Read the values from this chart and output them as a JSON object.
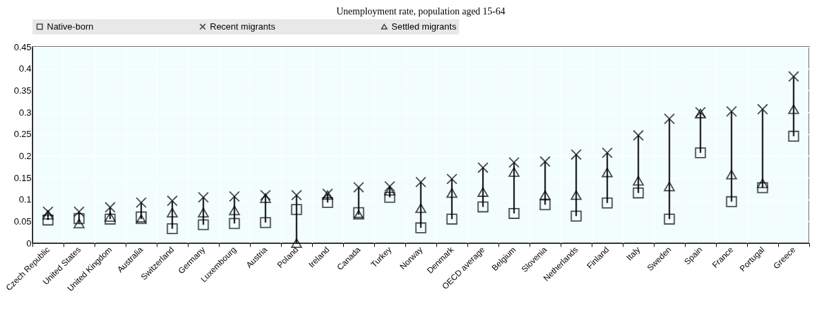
{
  "chart_data": {
    "type": "scatter",
    "title": "Unemployment rate, population aged 15-64",
    "categories": [
      "Czech Republic",
      "United States",
      "United Kingdom",
      "Australia",
      "Switzerland",
      "Germany",
      "Luxembourg",
      "Austria",
      "Poland",
      "Ireland",
      "Canada",
      "Turkey",
      "Norway",
      "Denmark",
      "OECD average",
      "Belgium",
      "Slovenia",
      "Netherlands",
      "Finland",
      "Italy",
      "Sweden",
      "Spain",
      "France",
      "Portugal",
      "Greece"
    ],
    "series": [
      {
        "name": "Native-born",
        "color": "#000000",
        "marker": "square",
        "values": [
          0.053,
          0.056,
          0.055,
          0.06,
          0.033,
          0.042,
          0.045,
          0.047,
          0.077,
          0.093,
          0.07,
          0.105,
          0.035,
          0.055,
          0.083,
          0.068,
          0.088,
          0.062,
          0.092,
          0.115,
          0.055,
          0.207,
          0.095,
          0.127,
          0.245
        ]
      },
      {
        "name": "Recent migrants",
        "color": "#000000",
        "marker": "cross",
        "values": [
          0.072,
          0.072,
          0.082,
          0.093,
          0.097,
          0.105,
          0.107,
          0.11,
          0.11,
          0.113,
          0.128,
          0.13,
          0.14,
          0.147,
          0.173,
          0.185,
          0.187,
          0.203,
          0.207,
          0.247,
          0.285,
          0.3,
          0.302,
          0.307,
          0.382
        ]
      },
      {
        "name": "Settled migrants",
        "color": "#000000",
        "marker": "triangle",
        "values": [
          0.065,
          0.045,
          0.06,
          0.055,
          0.07,
          0.07,
          0.075,
          0.103,
          0.0,
          0.11,
          0.065,
          0.12,
          0.08,
          0.115,
          0.117,
          0.163,
          0.11,
          0.11,
          0.162,
          0.143,
          0.13,
          0.297,
          0.157,
          0.137,
          0.307
        ]
      }
    ],
    "ylim": [
      0,
      0.45
    ],
    "yticks": [
      0,
      0.05,
      0.1,
      0.15,
      0.2,
      0.25,
      0.3,
      0.35,
      0.4,
      0.45
    ],
    "grid": true,
    "legend": "top"
  }
}
